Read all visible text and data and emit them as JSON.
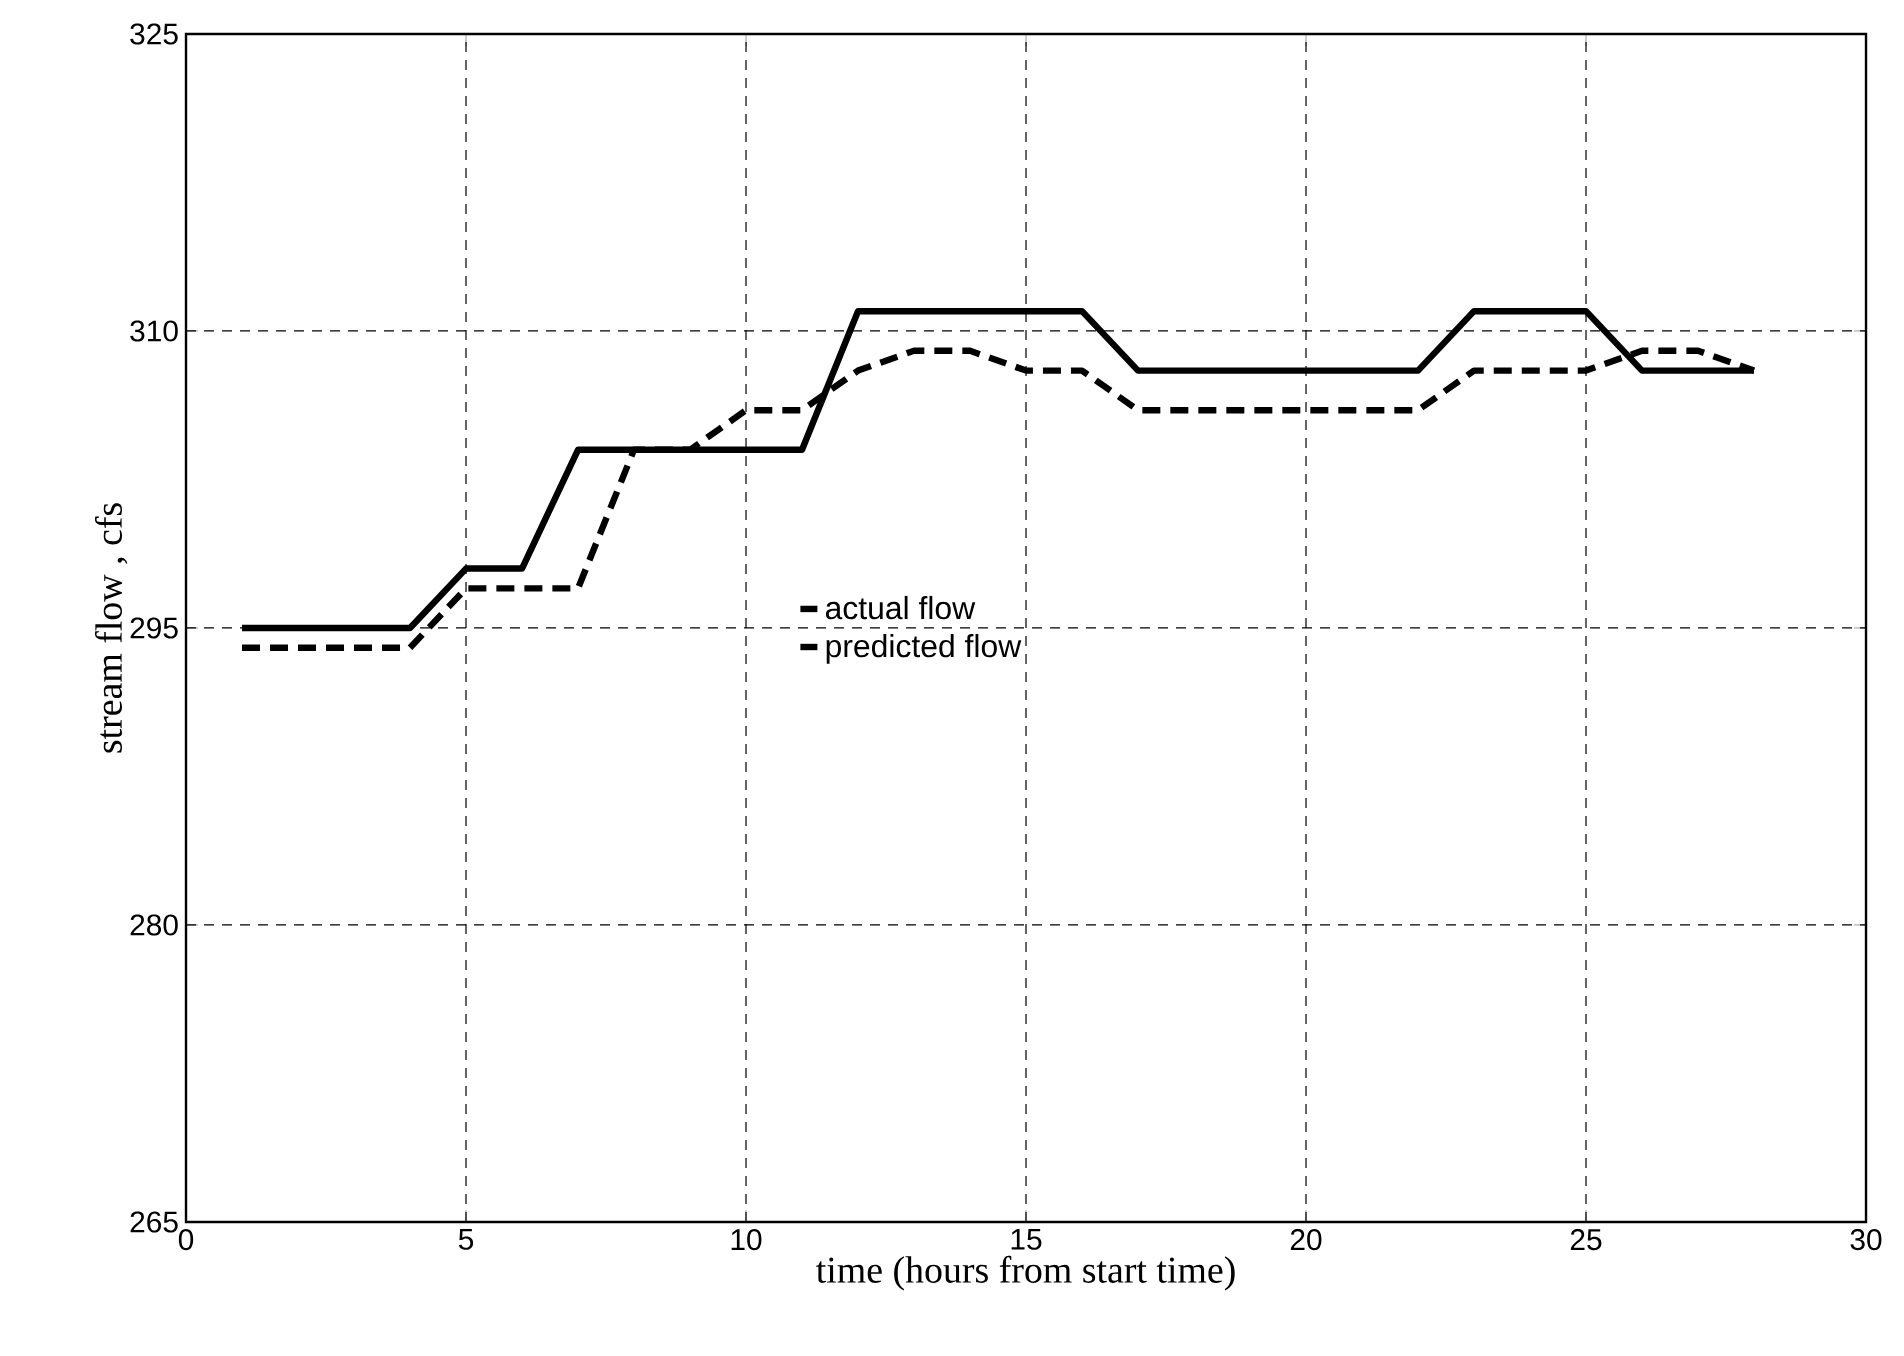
{
  "chart_data": {
    "type": "line",
    "xlabel": "time (hours from start time)",
    "ylabel": "stream flow , cfs",
    "x": [
      1,
      2,
      3,
      4,
      5,
      6,
      7,
      8,
      9,
      10,
      11,
      12,
      13,
      14,
      15,
      16,
      17,
      18,
      19,
      20,
      21,
      22,
      23,
      24,
      25,
      26,
      27,
      28
    ],
    "series": [
      {
        "name": "actual flow",
        "color": "#000000",
        "line_style": "solid",
        "values": [
          295,
          295,
          295,
          295,
          298,
          298,
          304,
          304,
          304,
          304,
          304,
          311,
          311,
          311,
          311,
          311,
          308,
          308,
          308,
          308,
          308,
          308,
          311,
          311,
          311,
          308,
          308,
          308
        ]
      },
      {
        "name": "predicted flow",
        "color": "#000000",
        "line_style": "dashed",
        "values": [
          294,
          294,
          294,
          294,
          297,
          297,
          297,
          304,
          304,
          306,
          306,
          308,
          309,
          309,
          308,
          308,
          306,
          306,
          306,
          306,
          306,
          306,
          308,
          308,
          308,
          309,
          309,
          308
        ]
      }
    ],
    "xlim": [
      0,
      30
    ],
    "xticks": [
      0,
      5,
      10,
      15,
      20,
      25,
      30
    ],
    "ylim": [
      265,
      325
    ],
    "yticks": [
      265,
      280,
      295,
      310,
      325
    ],
    "grid": true,
    "legend": "center",
    "marker": "none"
  }
}
